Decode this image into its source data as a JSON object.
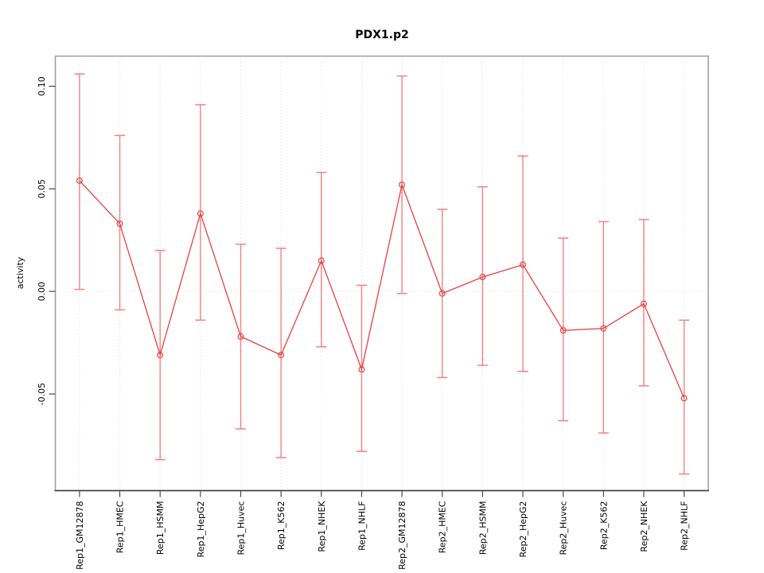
{
  "title": "PDX1.p2",
  "chart_data": {
    "type": "line",
    "title": "PDX1.p2",
    "xlabel": "",
    "ylabel": "activity",
    "legend": "none",
    "grid": "vertical dotted line at each category; dotted horizontal line at y=0",
    "categories": [
      "Rep1_GM12878",
      "Rep1_HMEC",
      "Rep1_HSMM",
      "Rep1_HepG2",
      "Rep1_Huvec",
      "Rep1_K562",
      "Rep1_NHEK",
      "Rep1_NHLF",
      "Rep2_GM12878",
      "Rep2_HMEC",
      "Rep2_HSMM",
      "Rep2_HepG2",
      "Rep2_Huvec",
      "Rep2_K562",
      "Rep2_NHEK",
      "Rep2_NHLF"
    ],
    "series": [
      {
        "name": "activity",
        "marker": "open-circle",
        "values": [
          0.054,
          0.033,
          -0.031,
          0.038,
          -0.022,
          -0.031,
          0.015,
          -0.038,
          0.052,
          -0.001,
          0.007,
          0.013,
          -0.019,
          -0.018,
          -0.006,
          -0.052
        ],
        "error_low": [
          0.001,
          -0.009,
          -0.082,
          -0.014,
          -0.067,
          -0.081,
          -0.027,
          -0.078,
          -0.001,
          -0.042,
          -0.036,
          -0.039,
          -0.063,
          -0.069,
          -0.046,
          -0.089
        ],
        "error_high": [
          0.106,
          0.076,
          0.02,
          0.091,
          0.023,
          0.021,
          0.058,
          0.003,
          0.105,
          0.04,
          0.051,
          0.066,
          0.026,
          0.034,
          0.035,
          -0.014
        ]
      }
    ],
    "yticks": [
      -0.05,
      0.0,
      0.05,
      0.1
    ],
    "ytick_labels": [
      "-0.05",
      "0.00",
      "0.05",
      "0.10"
    ],
    "ylim": [
      -0.0971,
      0.1147
    ],
    "xlim": [
      0.4,
      16.6
    ],
    "colors": {
      "line": "#e84040",
      "marker": "#e84040",
      "error_bar": "#f58080",
      "grid": "#d9d9d9",
      "zero_line": "#dbdbdb",
      "box": "#a0a0a0",
      "axis": "#3a3a3a",
      "text": "#000000",
      "background": "#ffffff"
    }
  }
}
